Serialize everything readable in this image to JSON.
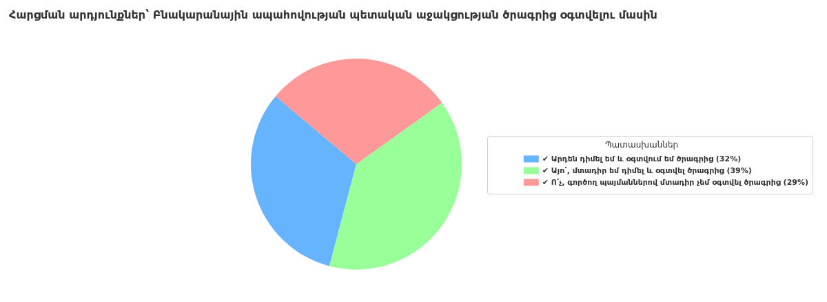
{
  "chart_data": {
    "type": "pie",
    "title": "Հարցման արդյունքներ՝ Բնակարանային ապահովության պետական աջակցության ծրագրից օգտվելու մասին",
    "legend_title": "Պատասխաններ",
    "categories": [
      "✔ Արդեն դիմել եմ և օգտվում եմ ծրագրից (32%)",
      "✔ Այո՛, մտադիր եմ դիմել և օգտվել ծրագրից (39%)",
      "✔ Ո՛չ, գործող պայմաններով մտադիր չեմ օգտվել ծրագրից (29%)"
    ],
    "values": [
      32,
      39,
      29
    ],
    "colors": [
      "#66b3ff",
      "#99ff99",
      "#ff9999"
    ],
    "legend": "right"
  }
}
